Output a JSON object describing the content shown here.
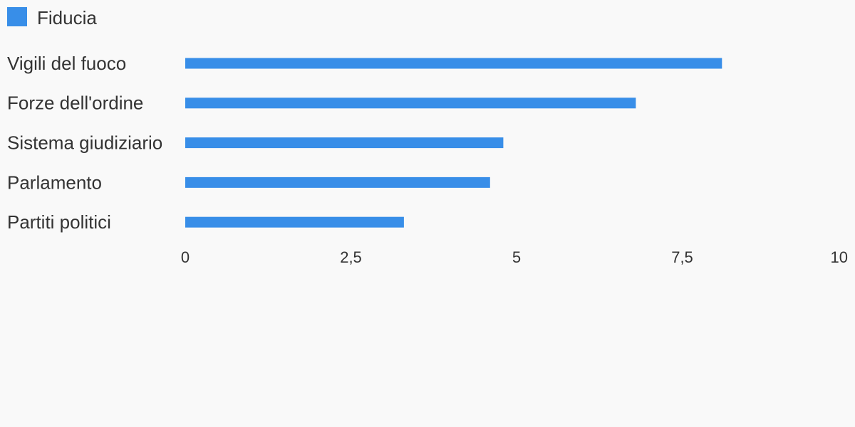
{
  "chart_data": {
    "type": "bar",
    "orientation": "horizontal",
    "categories": [
      "Vigili del fuoco",
      "Forze dell'ordine",
      "Sistema giudiziario",
      "Parlamento",
      "Partiti politici"
    ],
    "series": [
      {
        "name": "Fiducia",
        "color": "#388ee8",
        "values": [
          8.1,
          6.8,
          4.8,
          4.6,
          3.3
        ]
      }
    ],
    "xlim": [
      0,
      10
    ],
    "xticks": [
      0,
      {
        "value": 2.5,
        "label": "2,5"
      },
      5,
      {
        "value": 7.5,
        "label": "7,5"
      },
      10
    ],
    "grid": false,
    "legend": "top-left"
  }
}
